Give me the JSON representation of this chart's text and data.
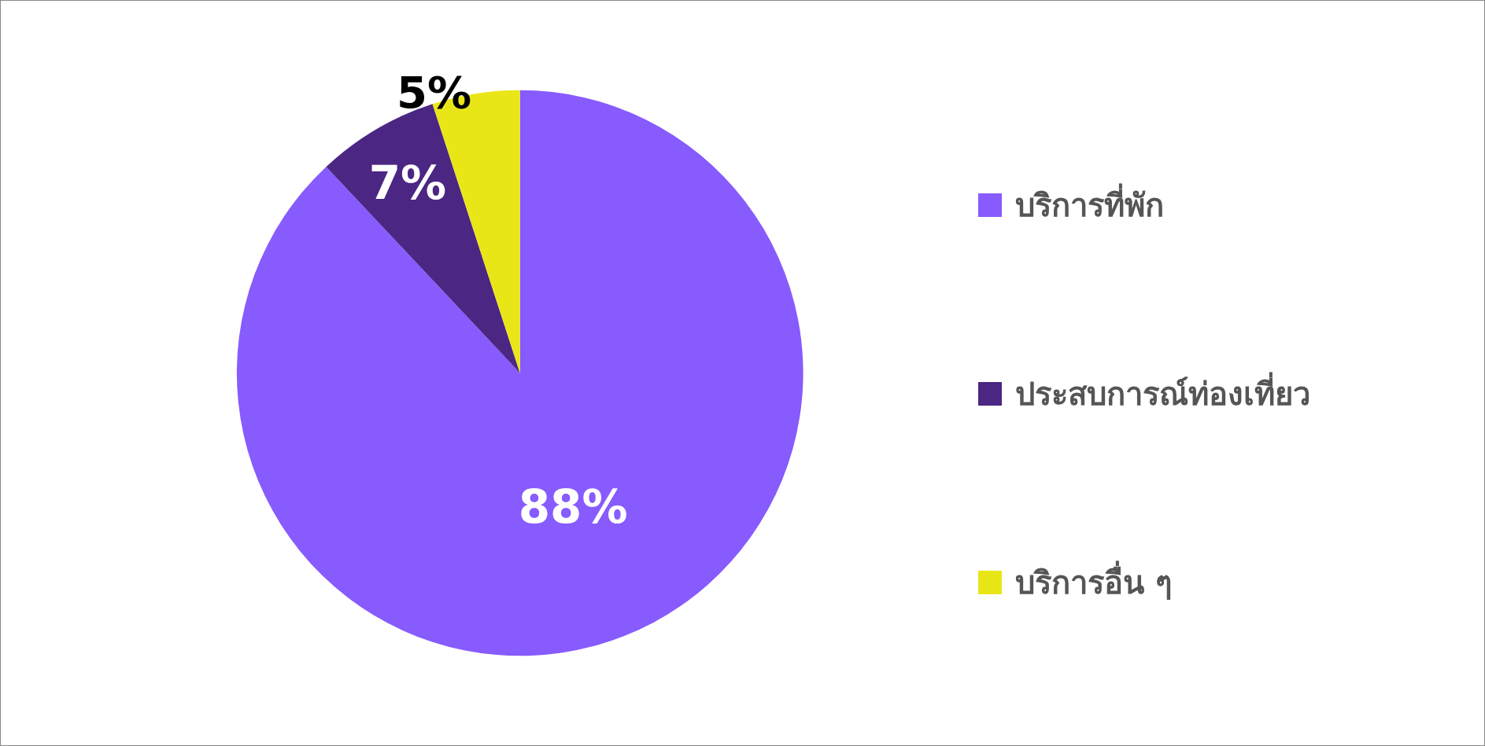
{
  "chart_data": {
    "type": "pie",
    "categories": [
      "บริการที่พัก",
      "ประสบการณ์ท่องเที่ยว",
      "บริการอื่น ๆ"
    ],
    "values": [
      88,
      7,
      5
    ],
    "colors": [
      "#875bfd",
      "#4b2683",
      "#e9e617"
    ],
    "value_labels": [
      "88%",
      "7%",
      "5%"
    ],
    "legend": "right"
  }
}
